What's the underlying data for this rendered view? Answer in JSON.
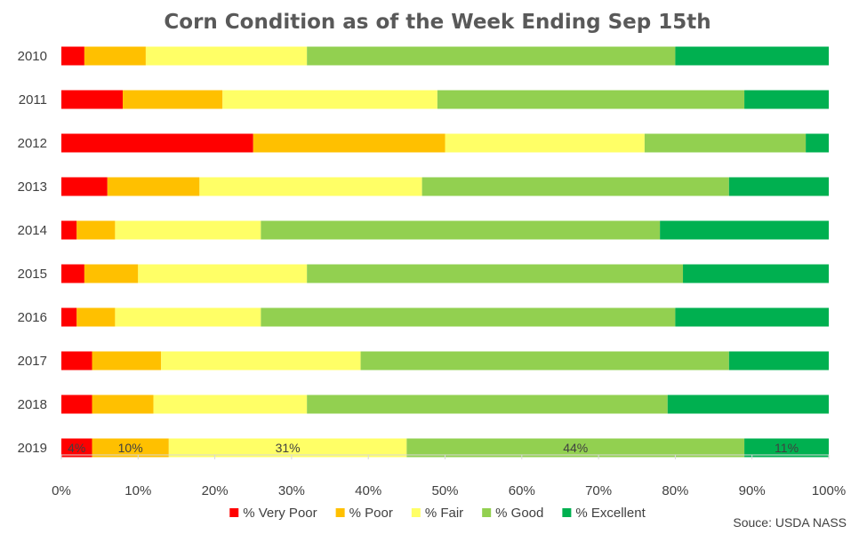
{
  "chart_data": {
    "type": "bar",
    "orientation": "horizontal",
    "stacked": true,
    "title": "Corn Condition as of the Week Ending Sep 15th",
    "source": "Souce: USDA NASS",
    "categories": [
      "2010",
      "2011",
      "2012",
      "2013",
      "2014",
      "2015",
      "2016",
      "2017",
      "2018",
      "2019"
    ],
    "xlim": [
      0,
      100
    ],
    "x_ticks": [
      "0%",
      "10%",
      "20%",
      "30%",
      "40%",
      "50%",
      "60%",
      "70%",
      "80%",
      "90%",
      "100%"
    ],
    "x_tick_values": [
      0,
      10,
      20,
      30,
      40,
      50,
      60,
      70,
      80,
      90,
      100
    ],
    "legend_position": "bottom",
    "grid": false,
    "series": [
      {
        "name": "% Very Poor",
        "color": "#ff0000",
        "values": [
          3,
          8,
          25,
          6,
          2,
          3,
          2,
          4,
          4,
          4
        ]
      },
      {
        "name": "% Poor",
        "color": "#ffc000",
        "values": [
          8,
          13,
          25,
          12,
          5,
          7,
          5,
          9,
          8,
          10
        ]
      },
      {
        "name": "% Fair",
        "color": "#ffff66",
        "values": [
          21,
          28,
          26,
          29,
          19,
          22,
          19,
          26,
          20,
          31
        ]
      },
      {
        "name": "% Good",
        "color": "#92d050",
        "values": [
          48,
          40,
          21,
          40,
          52,
          49,
          54,
          48,
          47,
          44
        ]
      },
      {
        "name": "% Excellent",
        "color": "#00b050",
        "values": [
          20,
          11,
          3,
          13,
          22,
          19,
          20,
          13,
          21,
          11
        ]
      }
    ],
    "data_labels": {
      "category": "2019",
      "labels": [
        "4%",
        "10%",
        "31%",
        "44%",
        "11%"
      ]
    }
  }
}
